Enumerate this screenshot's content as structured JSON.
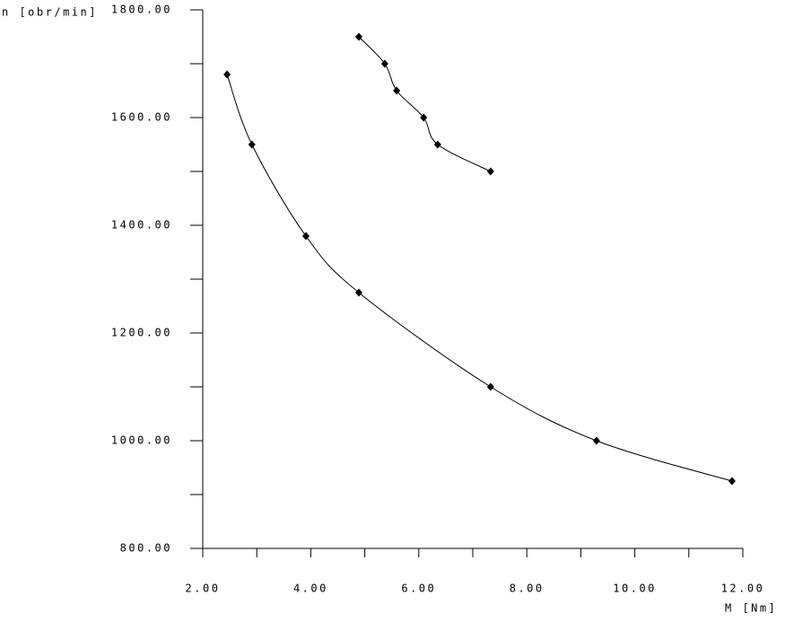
{
  "chart_data": {
    "type": "scatter",
    "y_label": "n [obr/min]",
    "x_label": "M [Nm]",
    "xlim": [
      2,
      12
    ],
    "ylim": [
      800,
      1800
    ],
    "xticks": [
      {
        "value": 2,
        "label": "2.00"
      },
      {
        "value": 4,
        "label": "4.00"
      },
      {
        "value": 6,
        "label": "6.00"
      },
      {
        "value": 8,
        "label": "8.00"
      },
      {
        "value": 10,
        "label": "10.00"
      },
      {
        "value": 12,
        "label": "12.00"
      }
    ],
    "xminor_ticks": [
      3,
      5,
      7,
      9,
      11
    ],
    "yticks": [
      {
        "value": 800,
        "label": "800.00"
      },
      {
        "value": 1000,
        "label": "1000.00"
      },
      {
        "value": 1200,
        "label": "1200.00"
      },
      {
        "value": 1400,
        "label": "1400.00"
      },
      {
        "value": 1600,
        "label": "1600.00"
      },
      {
        "value": 1800,
        "label": "1800.00"
      }
    ],
    "yminor_ticks": [
      900,
      1100,
      1300,
      1500,
      1700
    ],
    "series": [
      {
        "color": "#000000",
        "x": [
          2.45,
          2.91,
          3.91,
          4.89,
          7.33,
          9.29,
          11.8
        ],
        "values": [
          1680,
          1550,
          1380,
          1275,
          1100,
          1000,
          925
        ]
      },
      {
        "color": "#000000",
        "x": [
          4.89,
          5.37,
          5.59,
          6.09,
          6.35,
          7.33
        ],
        "values": [
          1750,
          1700,
          1650,
          1600,
          1550,
          1500
        ]
      }
    ]
  }
}
